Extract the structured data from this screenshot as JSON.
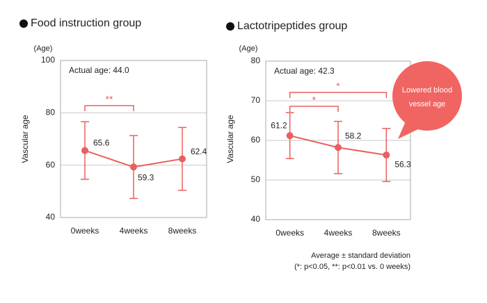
{
  "chart_data": [
    {
      "type": "line",
      "title": "Food instruction group",
      "y_unit": "(Age)",
      "ylabel": "Vascular age",
      "annotation": "Actual age: 44.0",
      "categories": [
        "0weeks",
        "4weeks",
        "8weeks"
      ],
      "values": [
        65.6,
        59.3,
        62.4
      ],
      "errors": [
        11,
        12,
        12
      ],
      "color": "#e8605f",
      "ylim": [
        40,
        100
      ],
      "yticks": [
        40,
        60,
        80,
        100
      ],
      "grid": true,
      "significance": [
        {
          "from": 0,
          "to": 1,
          "label": "**"
        }
      ]
    },
    {
      "type": "line",
      "title": "Lactotripeptides group",
      "y_unit": "(Age)",
      "ylabel": "Vascular age",
      "annotation": "Actual age: 42.3",
      "categories": [
        "0weeks",
        "4weeks",
        "8weeks"
      ],
      "values": [
        61.2,
        58.2,
        56.3
      ],
      "errors": [
        5.8,
        6.6,
        6.7
      ],
      "color": "#e8605f",
      "ylim": [
        40,
        80
      ],
      "yticks": [
        40,
        50,
        60,
        70,
        80
      ],
      "grid": true,
      "significance": [
        {
          "from": 0,
          "to": 1,
          "label": "*"
        },
        {
          "from": 0,
          "to": 2,
          "label": "*"
        }
      ],
      "callout": [
        "Lowered blood",
        "vessel age"
      ]
    }
  ],
  "footnote": [
    "Average ± standard deviation",
    "(*: p<0.05, **: p<0.01 vs. 0 weeks)"
  ]
}
